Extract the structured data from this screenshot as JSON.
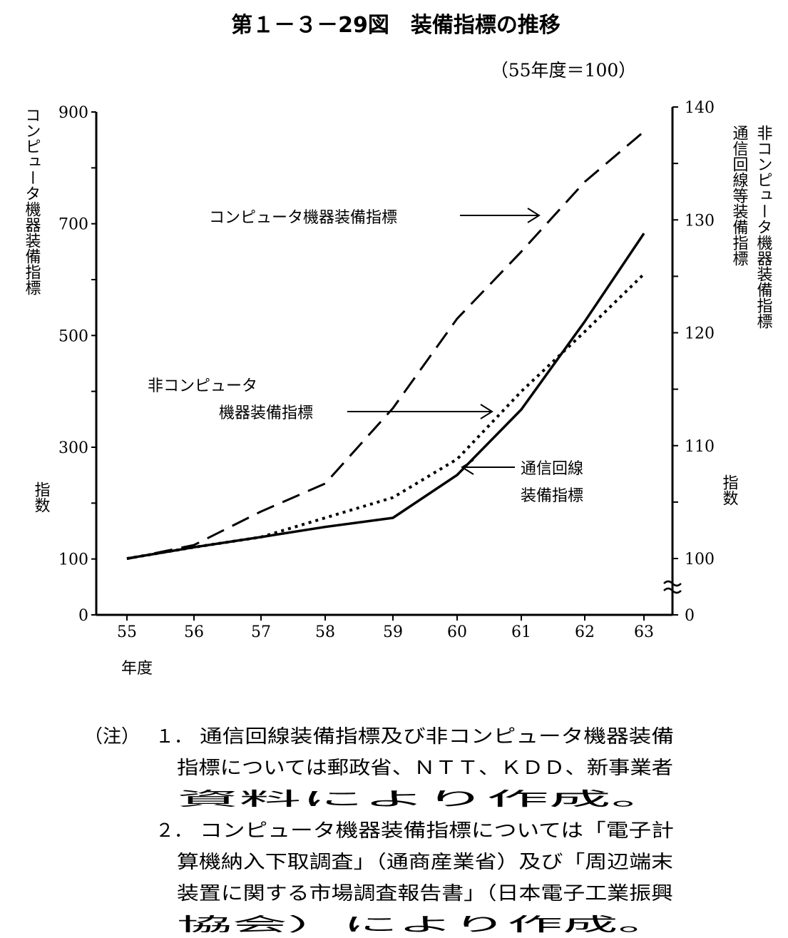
{
  "title": "第１－３－29図　装備指標の推移",
  "subtitle": "（55年度＝100）",
  "chart_data": {
    "type": "line",
    "x": [
      55,
      56,
      57,
      58,
      59,
      60,
      61,
      62,
      63
    ],
    "x_ticks": [
      "55",
      "56",
      "57",
      "58",
      "59",
      "60",
      "61",
      "62",
      "63"
    ],
    "xlabel": "年度",
    "left_axis": {
      "label": "コンピュータ機器装備指標",
      "label2": "指数",
      "ylim": [
        0,
        900
      ],
      "ticks": [
        "0",
        "100",
        "300",
        "500",
        "700",
        "900"
      ]
    },
    "right_axis": {
      "label_line1": "非コンピュータ機器装備指標",
      "label_line2": "通信回線等装備指標",
      "label2": "指数",
      "ylim": [
        100,
        140
      ],
      "ticks": [
        "0",
        "100",
        "110",
        "120",
        "130",
        "140"
      ],
      "broken": true
    },
    "series": [
      {
        "key": "computer",
        "axis": "left",
        "style": "dashed",
        "values": [
          100,
          125,
          185,
          235,
          370,
          530,
          650,
          775,
          865
        ]
      },
      {
        "key": "noncomputer",
        "axis": "right",
        "style": "dotted",
        "values": [
          100,
          101,
          101.9,
          103.6,
          105.4,
          108.8,
          114.8,
          120.1,
          125.2
        ]
      },
      {
        "key": "telecom",
        "axis": "right",
        "style": "solid",
        "values": [
          100,
          101,
          101.9,
          102.8,
          103.6,
          107.4,
          113.2,
          121,
          128.8
        ]
      }
    ],
    "annotations": {
      "computer": "コンピュータ機器装備指標",
      "noncomputer_line1": "非コンピュータ",
      "noncomputer_line2": "機器装備指標",
      "telecom_line1": "通信回線",
      "telecom_line2": "装備指標"
    }
  },
  "notes": {
    "prefix": "（注）",
    "items": [
      {
        "num": "１．",
        "lines": [
          "通信回線装備指標及び非コンピュータ機器装備",
          "指標については郵政省、ＮＴＴ、ＫＤＤ、新事業者",
          "資料により作成。"
        ]
      },
      {
        "num": "２．",
        "lines": [
          "コンピュータ機器装備指標については「電子計",
          "算機納入下取調査」（通商産業省）及び「周辺端末",
          "装置に関する市場調査報告書」（日本電子工業振興",
          "協会）により作成。"
        ]
      }
    ]
  }
}
